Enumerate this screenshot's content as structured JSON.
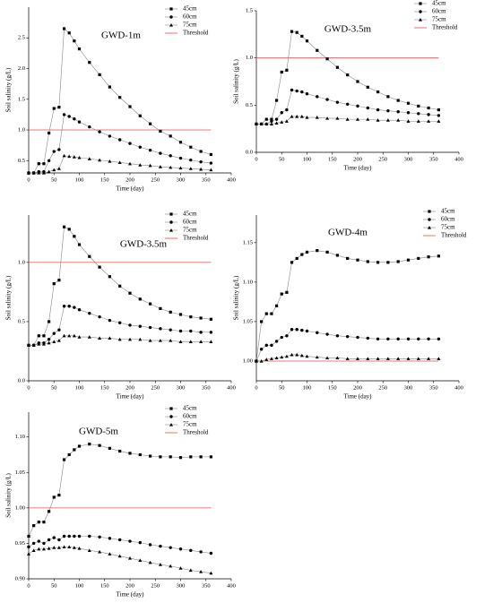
{
  "chart_data": [
    {
      "type": "line",
      "title": "GWD-1m",
      "xlabel": "Time (day)",
      "ylabel": "Soil salinity (g/L)",
      "x": [
        0,
        10,
        20,
        30,
        40,
        50,
        60,
        70,
        80,
        90,
        100,
        120,
        140,
        160,
        180,
        200,
        220,
        240,
        260,
        280,
        300,
        320,
        340,
        360
      ],
      "xlim": [
        0,
        400
      ],
      "xticks": [
        0,
        50,
        100,
        150,
        200,
        250,
        300,
        350,
        400
      ],
      "ylim": [
        0.3,
        3.0
      ],
      "yticks": [
        0.5,
        {
          "value": 1.0,
          "label": "1.0"
        },
        1.5,
        {
          "value": 2.0,
          "label": "2.0"
        },
        2.5
      ],
      "series": [
        {
          "name": "45cm",
          "color": "#000000",
          "marker": "square",
          "values": [
            0.3,
            0.3,
            0.45,
            0.45,
            0.95,
            1.35,
            1.37,
            2.65,
            2.58,
            2.45,
            2.32,
            2.1,
            1.9,
            1.7,
            1.53,
            1.38,
            1.23,
            1.1,
            0.98,
            0.9,
            0.8,
            0.72,
            0.65,
            0.6
          ]
        },
        {
          "name": "60cm",
          "color": "#000000",
          "marker": "circle",
          "values": [
            0.3,
            0.3,
            0.32,
            0.32,
            0.5,
            0.65,
            0.68,
            1.25,
            1.22,
            1.18,
            1.13,
            1.05,
            0.97,
            0.9,
            0.84,
            0.78,
            0.72,
            0.67,
            0.62,
            0.58,
            0.54,
            0.51,
            0.48,
            0.46
          ]
        },
        {
          "name": "75cm",
          "color": "#000000",
          "marker": "triangle",
          "values": [
            0.3,
            0.3,
            0.3,
            0.3,
            0.32,
            0.35,
            0.37,
            0.58,
            0.57,
            0.56,
            0.55,
            0.53,
            0.51,
            0.49,
            0.47,
            0.45,
            0.43,
            0.42,
            0.4,
            0.39,
            0.38,
            0.37,
            0.36,
            0.35
          ]
        }
      ],
      "threshold": {
        "name": "Threshold",
        "value": 1,
        "color": "#e05050"
      }
    },
    {
      "type": "line",
      "title": "GWD-3.5m",
      "xlabel": "Time (day)",
      "ylabel": "Soil salinity (g/L)",
      "x": [
        0,
        10,
        20,
        30,
        40,
        50,
        60,
        70,
        80,
        90,
        100,
        120,
        140,
        160,
        180,
        200,
        220,
        240,
        260,
        280,
        300,
        320,
        340,
        360
      ],
      "xlim": [
        0,
        400
      ],
      "xticks": [
        0,
        50,
        100,
        150,
        200,
        250,
        300,
        350,
        400
      ],
      "ylim": [
        0,
        1.5
      ],
      "yticks": [
        {
          "value": 0,
          "label": "0.0"
        },
        0.5,
        {
          "value": 1.0,
          "label": "1.0"
        },
        1.5
      ],
      "series": [
        {
          "name": "45cm",
          "color": "#000000",
          "marker": "square",
          "values": [
            0.3,
            0.3,
            0.35,
            0.35,
            0.55,
            0.85,
            0.87,
            1.28,
            1.27,
            1.23,
            1.18,
            1.08,
            0.99,
            0.9,
            0.82,
            0.75,
            0.69,
            0.64,
            0.59,
            0.55,
            0.52,
            0.49,
            0.47,
            0.45
          ]
        },
        {
          "name": "60cm",
          "color": "#000000",
          "marker": "circle",
          "values": [
            0.3,
            0.3,
            0.3,
            0.33,
            0.35,
            0.42,
            0.45,
            0.66,
            0.65,
            0.64,
            0.62,
            0.59,
            0.56,
            0.53,
            0.51,
            0.49,
            0.47,
            0.45,
            0.44,
            0.43,
            0.42,
            0.41,
            0.4,
            0.39
          ]
        },
        {
          "name": "75cm",
          "color": "#000000",
          "marker": "triangle",
          "values": [
            0.3,
            0.3,
            0.3,
            0.3,
            0.31,
            0.32,
            0.33,
            0.38,
            0.38,
            0.38,
            0.37,
            0.37,
            0.36,
            0.36,
            0.35,
            0.35,
            0.35,
            0.34,
            0.34,
            0.34,
            0.33,
            0.33,
            0.33,
            0.33
          ]
        }
      ],
      "threshold": {
        "name": "Threshold",
        "value": 1,
        "color": "#e05050"
      }
    },
    {
      "type": "line",
      "title": "GWD-3.5m",
      "xlabel": "Time (day)",
      "ylabel": "Soil salinity (g/L)",
      "x": [
        0,
        10,
        20,
        30,
        40,
        50,
        60,
        70,
        80,
        90,
        100,
        120,
        140,
        160,
        180,
        200,
        220,
        240,
        260,
        280,
        300,
        320,
        340,
        360
      ],
      "xlim": [
        0,
        400
      ],
      "xticks": [
        0,
        50,
        100,
        150,
        200,
        250,
        300,
        350,
        400
      ],
      "ylim": [
        0,
        1.4
      ],
      "yticks": [
        {
          "value": 0,
          "label": "0.0"
        },
        0.5,
        {
          "value": 1.0,
          "label": "1.0"
        }
      ],
      "series": [
        {
          "name": "45cm",
          "color": "#000000",
          "marker": "square",
          "values": [
            0.3,
            0.3,
            0.38,
            0.38,
            0.5,
            0.82,
            0.85,
            1.3,
            1.28,
            1.22,
            1.15,
            1.05,
            0.96,
            0.88,
            0.8,
            0.74,
            0.69,
            0.65,
            0.61,
            0.58,
            0.56,
            0.54,
            0.53,
            0.52
          ]
        },
        {
          "name": "60cm",
          "color": "#000000",
          "marker": "circle",
          "values": [
            0.3,
            0.3,
            0.32,
            0.32,
            0.35,
            0.4,
            0.43,
            0.63,
            0.63,
            0.62,
            0.6,
            0.57,
            0.54,
            0.51,
            0.49,
            0.47,
            0.46,
            0.45,
            0.44,
            0.43,
            0.42,
            0.42,
            0.41,
            0.41
          ]
        },
        {
          "name": "75cm",
          "color": "#000000",
          "marker": "triangle",
          "values": [
            0.3,
            0.3,
            0.31,
            0.31,
            0.32,
            0.33,
            0.34,
            0.38,
            0.38,
            0.38,
            0.37,
            0.37,
            0.36,
            0.36,
            0.35,
            0.35,
            0.35,
            0.34,
            0.34,
            0.34,
            0.33,
            0.33,
            0.33,
            0.33
          ]
        }
      ],
      "threshold": {
        "name": "Threshold",
        "value": 1,
        "color": "#e05050"
      }
    },
    {
      "type": "line",
      "title": "GWD-4m",
      "xlabel": "Time (day)",
      "ylabel": "Soil salinity (g/L)",
      "x": [
        0,
        10,
        20,
        30,
        40,
        50,
        60,
        70,
        80,
        90,
        100,
        120,
        140,
        160,
        180,
        200,
        220,
        240,
        260,
        280,
        300,
        320,
        340,
        360
      ],
      "xlim": [
        0,
        400
      ],
      "xticks": [
        0,
        50,
        100,
        150,
        200,
        250,
        300,
        350,
        400
      ],
      "ylim": [
        0.975,
        1.185
      ],
      "yticks": [
        {
          "value": 1.0,
          "label": "1.00"
        },
        1.05,
        {
          "value": 1.1,
          "label": "1.10"
        },
        1.15
      ],
      "series": [
        {
          "name": "45cm",
          "color": "#000000",
          "marker": "square",
          "values": [
            1.0,
            1.05,
            1.06,
            1.06,
            1.07,
            1.085,
            1.087,
            1.125,
            1.13,
            1.135,
            1.138,
            1.14,
            1.138,
            1.134,
            1.13,
            1.128,
            1.126,
            1.125,
            1.125,
            1.126,
            1.128,
            1.13,
            1.132,
            1.133
          ]
        },
        {
          "name": "60cm",
          "color": "#000000",
          "marker": "circle",
          "values": [
            1.0,
            1.015,
            1.02,
            1.02,
            1.025,
            1.03,
            1.032,
            1.04,
            1.04,
            1.039,
            1.038,
            1.036,
            1.034,
            1.032,
            1.031,
            1.03,
            1.029,
            1.028,
            1.028,
            1.028,
            1.028,
            1.028,
            1.028,
            1.028
          ]
        },
        {
          "name": "75cm",
          "color": "#000000",
          "marker": "triangle",
          "values": [
            1.0,
            1.0,
            1.002,
            1.003,
            1.004,
            1.005,
            1.006,
            1.008,
            1.008,
            1.007,
            1.006,
            1.005,
            1.004,
            1.004,
            1.003,
            1.003,
            1.003,
            1.003,
            1.003,
            1.003,
            1.003,
            1.003,
            1.003,
            1.003
          ]
        }
      ],
      "threshold": {
        "name": "Threshold",
        "value": 1,
        "color": "#e05050"
      }
    },
    {
      "type": "line",
      "title": "GWD-5m",
      "xlabel": "Time (day)",
      "ylabel": "Soil salinity (g/L)",
      "x": [
        0,
        10,
        20,
        30,
        40,
        50,
        60,
        70,
        80,
        90,
        100,
        120,
        140,
        160,
        180,
        200,
        220,
        240,
        260,
        280,
        300,
        320,
        340,
        360
      ],
      "xlim": [
        0,
        400
      ],
      "xticks": [
        0,
        50,
        100,
        150,
        200,
        250,
        300,
        350,
        400
      ],
      "ylim": [
        0.9,
        1.135
      ],
      "yticks": [
        {
          "value": 0.9,
          "label": "0.90"
        },
        0.95,
        {
          "value": 1.0,
          "label": "1.00"
        },
        1.05,
        {
          "value": 1.1,
          "label": "1.10"
        }
      ],
      "series": [
        {
          "name": "45cm",
          "color": "#000000",
          "marker": "square",
          "values": [
            0.96,
            0.975,
            0.98,
            0.98,
            0.995,
            1.015,
            1.018,
            1.068,
            1.075,
            1.082,
            1.087,
            1.09,
            1.088,
            1.084,
            1.08,
            1.077,
            1.075,
            1.073,
            1.072,
            1.072,
            1.071,
            1.072,
            1.072,
            1.072
          ]
        },
        {
          "name": "60cm",
          "color": "#000000",
          "marker": "circle",
          "values": [
            0.945,
            0.95,
            0.953,
            0.95,
            0.955,
            0.958,
            0.955,
            0.96,
            0.96,
            0.96,
            0.96,
            0.96,
            0.959,
            0.957,
            0.955,
            0.953,
            0.951,
            0.948,
            0.946,
            0.944,
            0.942,
            0.94,
            0.938,
            0.936
          ]
        },
        {
          "name": "75cm",
          "color": "#000000",
          "marker": "triangle",
          "values": [
            0.935,
            0.94,
            0.942,
            0.942,
            0.943,
            0.944,
            0.944,
            0.945,
            0.945,
            0.944,
            0.943,
            0.94,
            0.938,
            0.935,
            0.932,
            0.929,
            0.926,
            0.923,
            0.92,
            0.918,
            0.915,
            0.912,
            0.91,
            0.908
          ]
        }
      ],
      "threshold": {
        "name": "Threshold",
        "value": 1,
        "color": "#e05050"
      }
    }
  ]
}
